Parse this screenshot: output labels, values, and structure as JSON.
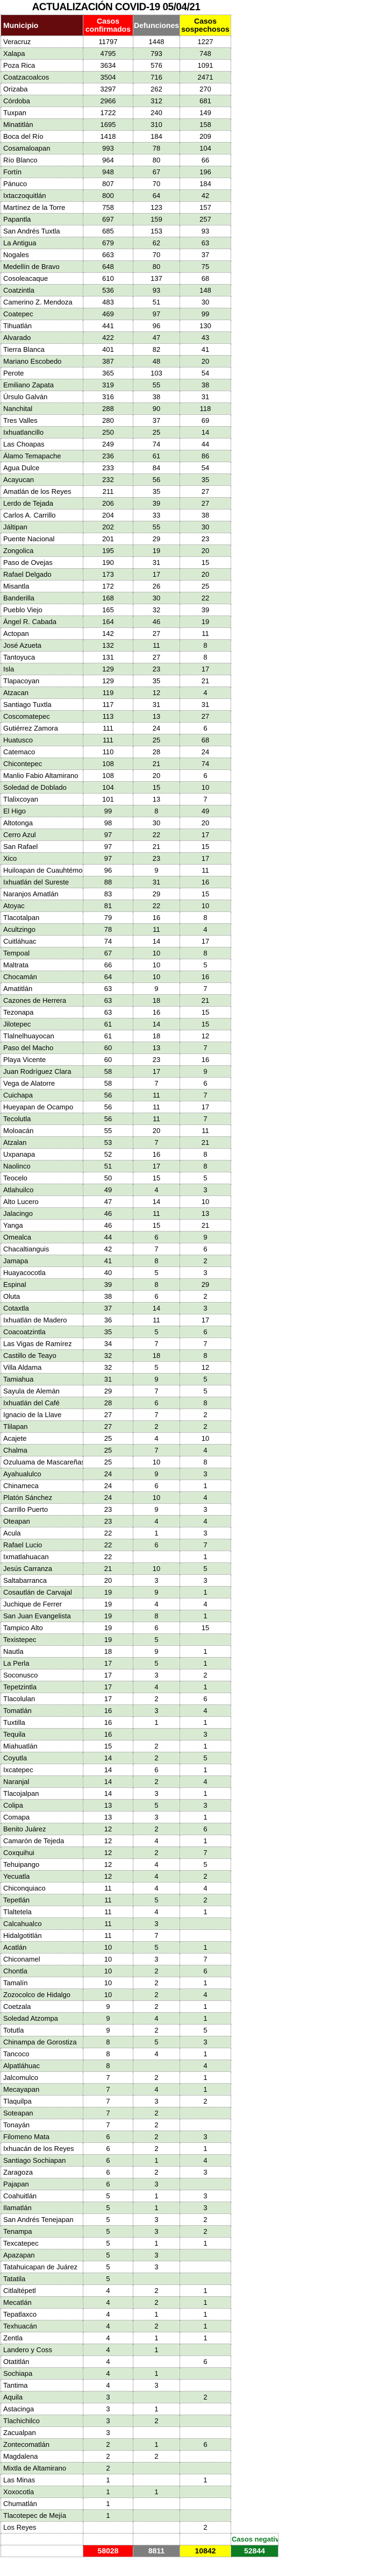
{
  "title": "ACTUALIZACIÓN COVID-19 05/04/21",
  "columns": [
    "Municipio",
    "Casos confirmados",
    "Defunciones",
    "Casos sospechosos"
  ],
  "colors": {
    "header_municipio": "#650b0e",
    "header_confirmados": "#fe0000",
    "header_defunciones": "#7f7f7f",
    "header_sospechosos": "#ffff00",
    "row_stripe": "#d9ead3",
    "negativos_green": "#0e7d25"
  },
  "rows": [
    [
      "Veracruz",
      "11797",
      "1448",
      "1227"
    ],
    [
      "Xalapa",
      "4795",
      "793",
      "748"
    ],
    [
      "Poza Rica",
      "3634",
      "576",
      "1091"
    ],
    [
      "Coatzacoalcos",
      "3504",
      "716",
      "2471"
    ],
    [
      "Orizaba",
      "3297",
      "262",
      "270"
    ],
    [
      "Córdoba",
      "2966",
      "312",
      "681"
    ],
    [
      "Tuxpan",
      "1722",
      "240",
      "149"
    ],
    [
      "Minatitlán",
      "1695",
      "310",
      "158"
    ],
    [
      "Boca del Río",
      "1418",
      "184",
      "209"
    ],
    [
      "Cosamaloapan",
      "993",
      "78",
      "104"
    ],
    [
      "Río Blanco",
      "964",
      "80",
      "66"
    ],
    [
      "Fortín",
      "948",
      "67",
      "196"
    ],
    [
      "Pánuco",
      "807",
      "70",
      "184"
    ],
    [
      "Ixtaczoquitlán",
      "800",
      "64",
      "42"
    ],
    [
      "Martínez de la Torre",
      "758",
      "123",
      "157"
    ],
    [
      "Papantla",
      "697",
      "159",
      "257"
    ],
    [
      "San Andrés Tuxtla",
      "685",
      "153",
      "93"
    ],
    [
      "La Antigua",
      "679",
      "62",
      "63"
    ],
    [
      "Nogales",
      "663",
      "70",
      "37"
    ],
    [
      "Medellín de Bravo",
      "648",
      "80",
      "75"
    ],
    [
      "Cosoleacaque",
      "610",
      "137",
      "68"
    ],
    [
      "Coatzintla",
      "536",
      "93",
      "148"
    ],
    [
      "Camerino Z. Mendoza",
      "483",
      "51",
      "30"
    ],
    [
      "Coatepec",
      "469",
      "97",
      "99"
    ],
    [
      "Tihuatlán",
      "441",
      "96",
      "130"
    ],
    [
      "Alvarado",
      "422",
      "47",
      "43"
    ],
    [
      "Tierra Blanca",
      "401",
      "82",
      "41"
    ],
    [
      "Mariano Escobedo",
      "387",
      "48",
      "20"
    ],
    [
      "Perote",
      "365",
      "103",
      "54"
    ],
    [
      "Emiliano Zapata",
      "319",
      "55",
      "38"
    ],
    [
      "Úrsulo Galván",
      "316",
      "38",
      "31"
    ],
    [
      "Nanchital",
      "288",
      "90",
      "118"
    ],
    [
      "Tres Valles",
      "280",
      "37",
      "69"
    ],
    [
      "Ixhuatlancillo",
      "250",
      "25",
      "14"
    ],
    [
      "Las Choapas",
      "249",
      "74",
      "44"
    ],
    [
      "Álamo Temapache",
      "236",
      "61",
      "86"
    ],
    [
      "Agua Dulce",
      "233",
      "84",
      "54"
    ],
    [
      "Acayucan",
      "232",
      "56",
      "35"
    ],
    [
      "Amatlán de los Reyes",
      "211",
      "35",
      "27"
    ],
    [
      "Lerdo de Tejada",
      "206",
      "39",
      "27"
    ],
    [
      "Carlos A. Carrillo",
      "204",
      "33",
      "38"
    ],
    [
      "Jáltipan",
      "202",
      "55",
      "30"
    ],
    [
      "Puente Nacional",
      "201",
      "29",
      "23"
    ],
    [
      "Zongolica",
      "195",
      "19",
      "20"
    ],
    [
      "Paso de Ovejas",
      "190",
      "31",
      "15"
    ],
    [
      "Rafael Delgado",
      "173",
      "17",
      "20"
    ],
    [
      "Misantla",
      "172",
      "26",
      "25"
    ],
    [
      "Banderilla",
      "168",
      "30",
      "22"
    ],
    [
      "Pueblo Viejo",
      "165",
      "32",
      "39"
    ],
    [
      "Ángel R. Cabada",
      "164",
      "46",
      "19"
    ],
    [
      "Actopan",
      "142",
      "27",
      "11"
    ],
    [
      "José Azueta",
      "132",
      "11",
      "8"
    ],
    [
      "Tantoyuca",
      "131",
      "27",
      "8"
    ],
    [
      "Isla",
      "129",
      "23",
      "17"
    ],
    [
      "Tlapacoyan",
      "129",
      "35",
      "21"
    ],
    [
      "Atzacan",
      "119",
      "12",
      "4"
    ],
    [
      "Santiago Tuxtla",
      "117",
      "31",
      "31"
    ],
    [
      "Coscomatepec",
      "113",
      "13",
      "27"
    ],
    [
      "Gutiérrez Zamora",
      "111",
      "24",
      "6"
    ],
    [
      "Huatusco",
      "111",
      "25",
      "68"
    ],
    [
      "Catemaco",
      "110",
      "28",
      "24"
    ],
    [
      "Chicontepec",
      "108",
      "21",
      "74"
    ],
    [
      "Manlio Fabio Altamirano",
      "108",
      "20",
      "6"
    ],
    [
      "Soledad de Doblado",
      "104",
      "15",
      "10"
    ],
    [
      "Tlalixcoyan",
      "101",
      "13",
      "7"
    ],
    [
      "El Higo",
      "99",
      "8",
      "49"
    ],
    [
      "Altotonga",
      "98",
      "30",
      "20"
    ],
    [
      "Cerro Azul",
      "97",
      "22",
      "17"
    ],
    [
      "San Rafael",
      "97",
      "21",
      "15"
    ],
    [
      "Xico",
      "97",
      "23",
      "17"
    ],
    [
      "Huiloapan de Cuauhtémoc",
      "96",
      "9",
      "11"
    ],
    [
      "Ixhuatlán del Sureste",
      "88",
      "31",
      "16"
    ],
    [
      "Naranjos Amatlán",
      "83",
      "29",
      "15"
    ],
    [
      "Atoyac",
      "81",
      "22",
      "10"
    ],
    [
      "Tlacotalpan",
      "79",
      "16",
      "8"
    ],
    [
      "Acultzingo",
      "78",
      "11",
      "4"
    ],
    [
      "Cuitláhuac",
      "74",
      "14",
      "17"
    ],
    [
      "Tempoal",
      "67",
      "10",
      "8"
    ],
    [
      "Maltrata",
      "66",
      "10",
      "5"
    ],
    [
      "Chocamán",
      "64",
      "10",
      "16"
    ],
    [
      "Amatitlán",
      "63",
      "9",
      "7"
    ],
    [
      "Cazones de Herrera",
      "63",
      "18",
      "21"
    ],
    [
      "Tezonapa",
      "63",
      "16",
      "15"
    ],
    [
      "Jilotepec",
      "61",
      "14",
      "15"
    ],
    [
      "Tlalnelhuayocan",
      "61",
      "18",
      "12"
    ],
    [
      "Paso del Macho",
      "60",
      "13",
      "7"
    ],
    [
      "Playa Vicente",
      "60",
      "23",
      "16"
    ],
    [
      "Juan Rodríguez Clara",
      "58",
      "17",
      "9"
    ],
    [
      "Vega de Alatorre",
      "58",
      "7",
      "6"
    ],
    [
      "Cuichapa",
      "56",
      "11",
      "7"
    ],
    [
      "Hueyapan de Ocampo",
      "56",
      "11",
      "17"
    ],
    [
      "Tecolutla",
      "56",
      "11",
      "7"
    ],
    [
      "Moloacán",
      "55",
      "20",
      "11"
    ],
    [
      "Atzalan",
      "53",
      "7",
      "21"
    ],
    [
      "Uxpanapa",
      "52",
      "16",
      "8"
    ],
    [
      "Naolinco",
      "51",
      "17",
      "8"
    ],
    [
      "Teocelo",
      "50",
      "15",
      "5"
    ],
    [
      "Atlahuilco",
      "49",
      "4",
      "3"
    ],
    [
      "Alto Lucero",
      "47",
      "14",
      "10"
    ],
    [
      "Jalacingo",
      "46",
      "11",
      "13"
    ],
    [
      "Yanga",
      "46",
      "15",
      "21"
    ],
    [
      "Omealca",
      "44",
      "6",
      "9"
    ],
    [
      "Chacaltianguis",
      "42",
      "7",
      "6"
    ],
    [
      "Jamapa",
      "41",
      "8",
      "2"
    ],
    [
      "Huayacocotla",
      "40",
      "5",
      "3"
    ],
    [
      "Espinal",
      "39",
      "8",
      "29"
    ],
    [
      "Oluta",
      "38",
      "6",
      "2"
    ],
    [
      "Cotaxtla",
      "37",
      "14",
      "3"
    ],
    [
      "Ixhuatlán de Madero",
      "36",
      "11",
      "17"
    ],
    [
      "Coacoatzintla",
      "35",
      "5",
      "6"
    ],
    [
      "Las Vigas de Ramírez",
      "34",
      "7",
      "7"
    ],
    [
      "Castillo de Teayo",
      "32",
      "18",
      "8"
    ],
    [
      "Villa Aldama",
      "32",
      "5",
      "12"
    ],
    [
      "Tamiahua",
      "31",
      "9",
      "5"
    ],
    [
      "Sayula de Alemán",
      "29",
      "7",
      "5"
    ],
    [
      "Ixhuatlán del Café",
      "28",
      "6",
      "8"
    ],
    [
      "Ignacio de la Llave",
      "27",
      "7",
      "2"
    ],
    [
      "Tlilapan",
      "27",
      "2",
      "2"
    ],
    [
      "Acajete",
      "25",
      "4",
      "10"
    ],
    [
      "Chalma",
      "25",
      "7",
      "4"
    ],
    [
      "Ozuluama de Mascareñas",
      "25",
      "10",
      "8"
    ],
    [
      "Ayahualulco",
      "24",
      "9",
      "3"
    ],
    [
      "Chinameca",
      "24",
      "6",
      "1"
    ],
    [
      "Platón Sánchez",
      "24",
      "10",
      "4"
    ],
    [
      "Carrillo Puerto",
      "23",
      "9",
      "3"
    ],
    [
      "Oteapan",
      "23",
      "4",
      "4"
    ],
    [
      "Acula",
      "22",
      "1",
      "3"
    ],
    [
      "Rafael Lucio",
      "22",
      "6",
      "7"
    ],
    [
      "Ixmatlahuacan",
      "22",
      "",
      "1"
    ],
    [
      "Jesús Carranza",
      "21",
      "10",
      "5"
    ],
    [
      "Saltabarranca",
      "20",
      "3",
      "3"
    ],
    [
      "Cosautlán de Carvajal",
      "19",
      "9",
      "1"
    ],
    [
      "Juchique de Ferrer",
      "19",
      "4",
      "4"
    ],
    [
      "San Juan Evangelista",
      "19",
      "8",
      "1"
    ],
    [
      "Tampico Alto",
      "19",
      "6",
      "15"
    ],
    [
      "Texistepec",
      "19",
      "5",
      ""
    ],
    [
      "Nautla",
      "18",
      "9",
      "1"
    ],
    [
      "La Perla",
      "17",
      "5",
      "1"
    ],
    [
      "Soconusco",
      "17",
      "3",
      "2"
    ],
    [
      "Tepetzintla",
      "17",
      "4",
      "1"
    ],
    [
      "Tlacolulan",
      "17",
      "2",
      "6"
    ],
    [
      "Tomatlán",
      "16",
      "3",
      "4"
    ],
    [
      "Tuxtilla",
      "16",
      "1",
      "1"
    ],
    [
      "Tequila",
      "16",
      "",
      "3"
    ],
    [
      "Miahuatlán",
      "15",
      "2",
      "1"
    ],
    [
      "Coyutla",
      "14",
      "2",
      "5"
    ],
    [
      "Ixcatepec",
      "14",
      "6",
      "1"
    ],
    [
      "Naranjal",
      "14",
      "2",
      "4"
    ],
    [
      "Tlacojalpan",
      "14",
      "3",
      "1"
    ],
    [
      "Colipa",
      "13",
      "5",
      "3"
    ],
    [
      "Comapa",
      "13",
      "3",
      "1"
    ],
    [
      "Benito Juárez",
      "12",
      "2",
      "6"
    ],
    [
      "Camarón de Tejeda",
      "12",
      "4",
      "1"
    ],
    [
      "Coxquihui",
      "12",
      "2",
      "7"
    ],
    [
      "Tehuipango",
      "12",
      "4",
      "5"
    ],
    [
      "Yecuatla",
      "12",
      "4",
      "2"
    ],
    [
      "Chiconquiaco",
      "11",
      "4",
      "4"
    ],
    [
      "Tepetlán",
      "11",
      "5",
      "2"
    ],
    [
      "Tlaltetela",
      "11",
      "4",
      "1"
    ],
    [
      "Calcahualco",
      "11",
      "3",
      ""
    ],
    [
      "Hidalgotitlán",
      "11",
      "7",
      ""
    ],
    [
      "Acatlán",
      "10",
      "5",
      "1"
    ],
    [
      "Chiconamel",
      "10",
      "3",
      "7"
    ],
    [
      "Chontla",
      "10",
      "2",
      "6"
    ],
    [
      "Tamalín",
      "10",
      "2",
      "1"
    ],
    [
      "Zozocolco de Hidalgo",
      "10",
      "2",
      "4"
    ],
    [
      "Coetzala",
      "9",
      "2",
      "1"
    ],
    [
      "Soledad Atzompa",
      "9",
      "4",
      "1"
    ],
    [
      "Totutla",
      "9",
      "2",
      "5"
    ],
    [
      "Chinampa de Gorostiza",
      "8",
      "5",
      "3"
    ],
    [
      "Tancoco",
      "8",
      "4",
      "1"
    ],
    [
      "Alpatláhuac",
      "8",
      "",
      "4"
    ],
    [
      "Jalcomulco",
      "7",
      "2",
      "1"
    ],
    [
      "Mecayapan",
      "7",
      "4",
      "1"
    ],
    [
      "Tlaquilpa",
      "7",
      "3",
      "2"
    ],
    [
      "Soteapan",
      "7",
      "2",
      ""
    ],
    [
      "Tonayán",
      "7",
      "2",
      ""
    ],
    [
      "Filomeno Mata",
      "6",
      "2",
      "3"
    ],
    [
      "Ixhuacán de los Reyes",
      "6",
      "2",
      "1"
    ],
    [
      "Santiago Sochiapan",
      "6",
      "1",
      "4"
    ],
    [
      "Zaragoza",
      "6",
      "2",
      "3"
    ],
    [
      "Pajapan",
      "6",
      "3",
      ""
    ],
    [
      "Coahuitlán",
      "5",
      "1",
      "3"
    ],
    [
      "Ilamatlán",
      "5",
      "1",
      "3"
    ],
    [
      "San Andrés Tenejapan",
      "5",
      "3",
      "2"
    ],
    [
      "Tenampa",
      "5",
      "3",
      "2"
    ],
    [
      "Texcatepec",
      "5",
      "1",
      "1"
    ],
    [
      "Apazapan",
      "5",
      "3",
      ""
    ],
    [
      "Tatahuicapan de Juárez",
      "5",
      "3",
      ""
    ],
    [
      "Tatatila",
      "5",
      "",
      ""
    ],
    [
      "Citlaltépetl",
      "4",
      "2",
      "1"
    ],
    [
      "Mecatlán",
      "4",
      "2",
      "1"
    ],
    [
      "Tepatlaxco",
      "4",
      "1",
      "1"
    ],
    [
      "Texhuacán",
      "4",
      "2",
      "1"
    ],
    [
      "Zentla",
      "4",
      "1",
      "1"
    ],
    [
      "Landero y Coss",
      "4",
      "1",
      ""
    ],
    [
      "Otatitlán",
      "4",
      "",
      "6"
    ],
    [
      "Sochiapa",
      "4",
      "1",
      ""
    ],
    [
      "Tantima",
      "4",
      "3",
      ""
    ],
    [
      "Aquila",
      "3",
      "",
      "2"
    ],
    [
      "Astacinga",
      "3",
      "1",
      ""
    ],
    [
      "Tlachichilco",
      "3",
      "2",
      ""
    ],
    [
      "Zacualpan",
      "3",
      "",
      ""
    ],
    [
      "Zontecomatlán",
      "2",
      "1",
      "6"
    ],
    [
      "Magdalena",
      "2",
      "2",
      ""
    ],
    [
      "Mixtla de Altamirano",
      "2",
      "",
      ""
    ],
    [
      "Las Minas",
      "1",
      "",
      "1"
    ],
    [
      "Xoxocotla",
      "1",
      "1",
      ""
    ],
    [
      "Chumatlán",
      "1",
      "",
      ""
    ],
    [
      "Tlacotepec de Mejía",
      "1",
      "",
      ""
    ],
    [
      "Los Reyes",
      "",
      "",
      "2"
    ]
  ],
  "footer": {
    "negativos_label": "Casos negativos",
    "totals": {
      "confirmados": "58028",
      "defunciones": "8811",
      "sospechosos": "10842",
      "negativos": "52844"
    }
  }
}
